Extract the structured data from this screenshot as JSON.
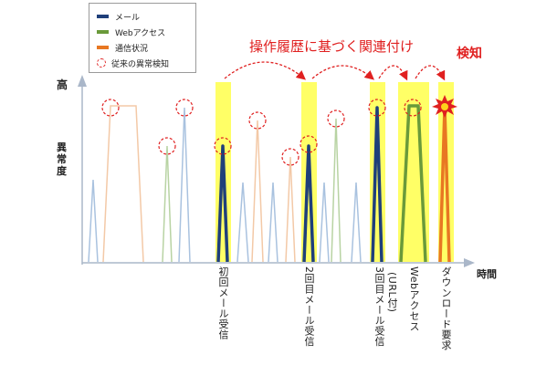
{
  "legend": {
    "items": [
      {
        "label": "メール",
        "color": "#1f3f7a"
      },
      {
        "label": "Webアクセス",
        "color": "#6a9a3a"
      },
      {
        "label": "通信状況",
        "color": "#e87722"
      },
      {
        "label": "従来の異常検知",
        "color": "#e02020"
      }
    ]
  },
  "axes": {
    "y_high": "高",
    "y_label": "異常度",
    "x_label": "時間"
  },
  "title": "操作履歴に基づく関連付け",
  "detect_label": "検知",
  "events": [
    {
      "label": "初回メール受信"
    },
    {
      "label": "2回目メール受信"
    },
    {
      "label": "(URL付)",
      "sub": "3回目メール受信"
    },
    {
      "label": "Webアクセス"
    },
    {
      "label": "ダウンロード要求"
    }
  ],
  "colors": {
    "highlight": "#ffff66",
    "mail": "#1f3f7a",
    "web": "#6a9a3a",
    "comm": "#e87722",
    "alert": "#e02020",
    "faint_blue": "#a9c2df",
    "faint_orange": "#f3c9a7",
    "faint_green": "#b8d3a3"
  }
}
